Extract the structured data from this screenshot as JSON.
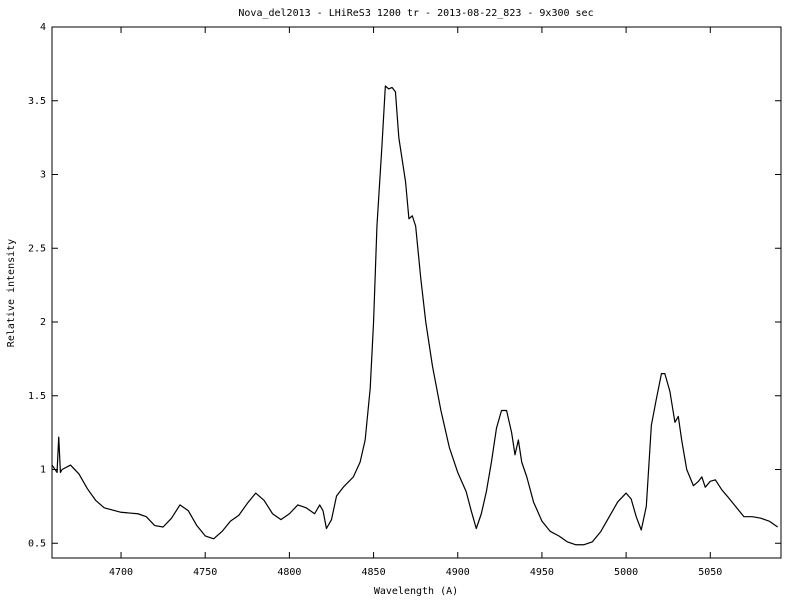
{
  "chart_data": {
    "type": "line",
    "title": "Nova_del2013 - LHiReS3 1200 tr  - 2013-08-22_823 - 9x300 sec",
    "x_label": "Wavelength (A)",
    "y_label": "Relative intensity",
    "color": "#000000",
    "xlim": [
      4659,
      5092
    ],
    "ylim": [
      0.4,
      4
    ],
    "xticks": [
      4700,
      4750,
      4800,
      4850,
      4900,
      4950,
      5000,
      5050
    ],
    "yticks": [
      0.5,
      1,
      1.5,
      2,
      2.5,
      3,
      3.5,
      4
    ],
    "x": [
      4659,
      4662,
      4663,
      4664,
      4665,
      4670,
      4675,
      4680,
      4685,
      4690,
      4700,
      4710,
      4715,
      4720,
      4725,
      4730,
      4735,
      4740,
      4745,
      4750,
      4755,
      4760,
      4765,
      4770,
      4775,
      4780,
      4785,
      4790,
      4795,
      4800,
      4805,
      4810,
      4815,
      4818,
      4820,
      4822,
      4825,
      4828,
      4832,
      4838,
      4842,
      4845,
      4848,
      4850,
      4852,
      4855,
      4857,
      4859,
      4861,
      4863,
      4865,
      4867,
      4869,
      4871,
      4873,
      4875,
      4878,
      4881,
      4885,
      4890,
      4895,
      4900,
      4905,
      4908,
      4911,
      4914,
      4917,
      4920,
      4923,
      4926,
      4929,
      4932,
      4934,
      4936,
      4938,
      4941,
      4945,
      4950,
      4955,
      4960,
      4965,
      4970,
      4975,
      4980,
      4985,
      4990,
      4995,
      5000,
      5003,
      5006,
      5009,
      5012,
      5015,
      5018,
      5021,
      5023,
      5026,
      5029,
      5031,
      5033,
      5036,
      5040,
      5043,
      5045,
      5047,
      5050,
      5053,
      5057,
      5060,
      5065,
      5070,
      5075,
      5080,
      5085,
      5090
    ],
    "values": [
      1.03,
      0.98,
      1.22,
      0.98,
      1.0,
      1.03,
      0.97,
      0.87,
      0.79,
      0.74,
      0.71,
      0.7,
      0.68,
      0.62,
      0.61,
      0.67,
      0.76,
      0.72,
      0.62,
      0.55,
      0.53,
      0.58,
      0.65,
      0.69,
      0.77,
      0.84,
      0.79,
      0.7,
      0.66,
      0.7,
      0.76,
      0.74,
      0.7,
      0.76,
      0.72,
      0.6,
      0.66,
      0.82,
      0.88,
      0.95,
      1.05,
      1.2,
      1.55,
      2.0,
      2.65,
      3.2,
      3.6,
      3.58,
      3.59,
      3.56,
      3.25,
      3.1,
      2.95,
      2.7,
      2.72,
      2.65,
      2.3,
      2.0,
      1.7,
      1.4,
      1.15,
      0.98,
      0.85,
      0.72,
      0.6,
      0.7,
      0.85,
      1.05,
      1.28,
      1.4,
      1.4,
      1.25,
      1.1,
      1.2,
      1.05,
      0.95,
      0.78,
      0.65,
      0.58,
      0.55,
      0.51,
      0.49,
      0.49,
      0.51,
      0.58,
      0.68,
      0.78,
      0.84,
      0.8,
      0.68,
      0.59,
      0.75,
      1.3,
      1.48,
      1.65,
      1.65,
      1.53,
      1.32,
      1.36,
      1.2,
      1.0,
      0.89,
      0.92,
      0.95,
      0.88,
      0.92,
      0.93,
      0.86,
      0.82,
      0.75,
      0.68,
      0.68,
      0.67,
      0.65,
      0.61
    ]
  }
}
